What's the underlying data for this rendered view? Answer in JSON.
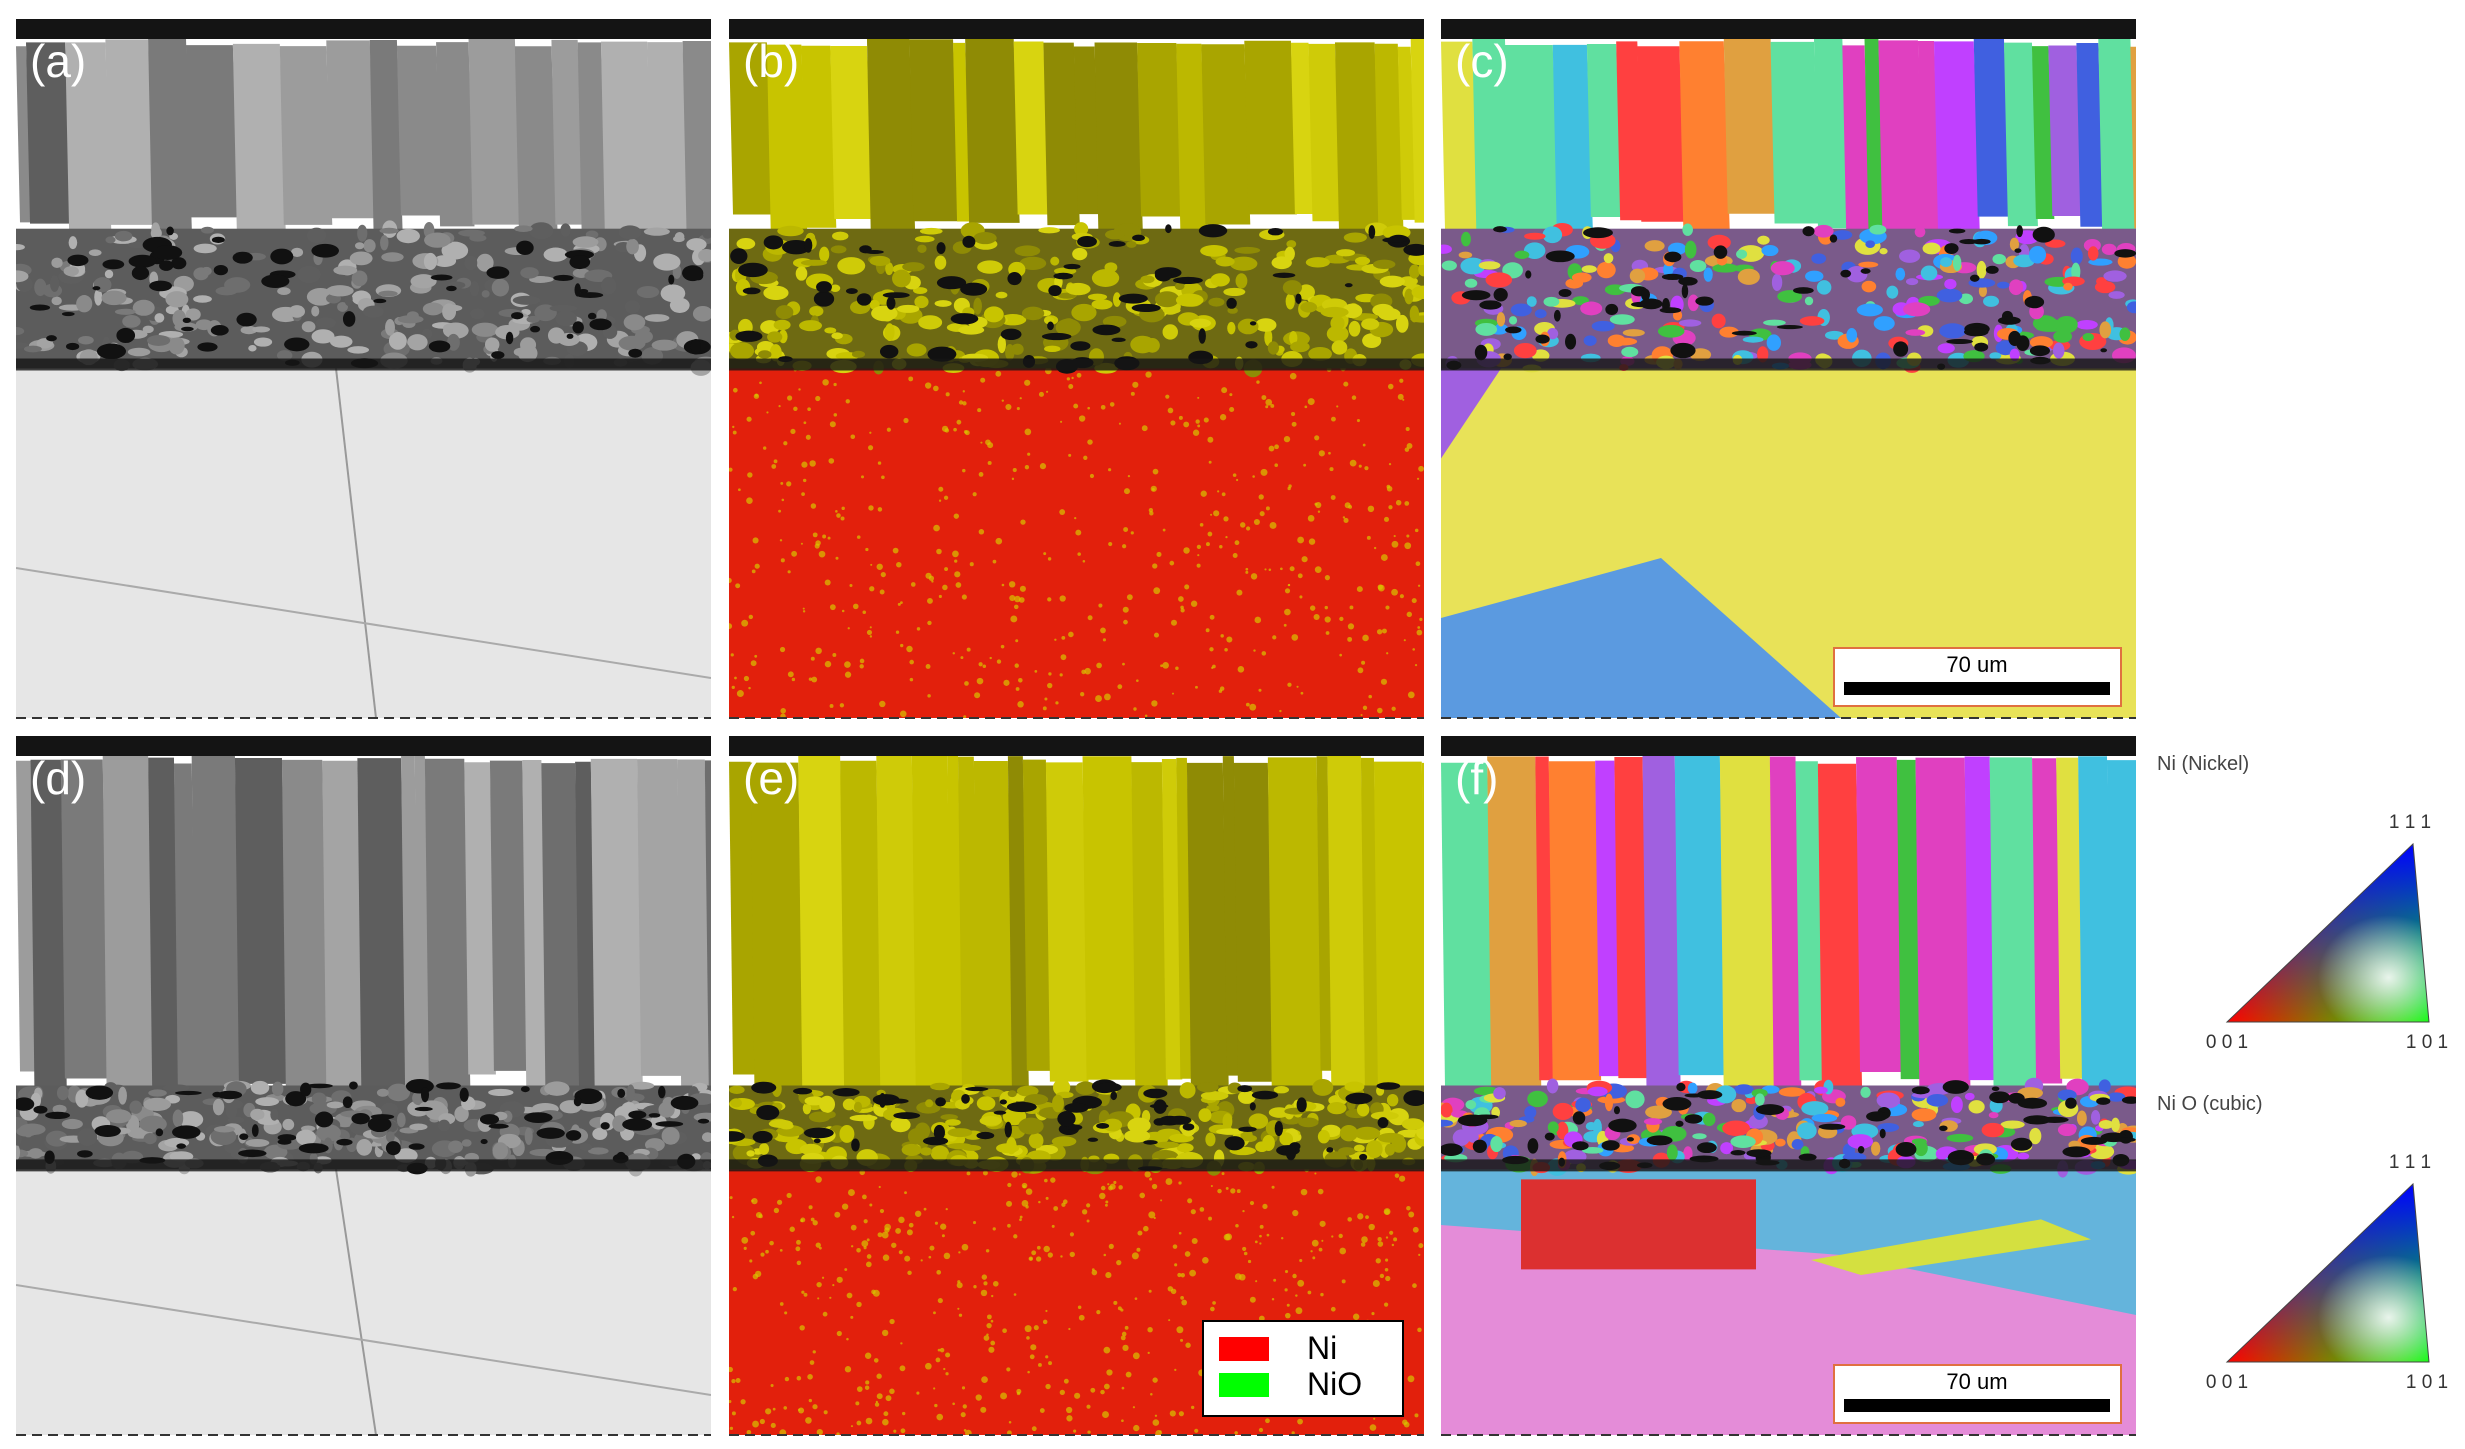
{
  "panels": [
    {
      "label": "(a)"
    },
    {
      "label": "(b)"
    },
    {
      "label": "(c)",
      "scale_bar": "70 um"
    },
    {
      "label": "(d)"
    },
    {
      "label": "(e)",
      "legend": [
        {
          "name": "Ni",
          "color": "#ff0000"
        },
        {
          "name": "NiO",
          "color": "#00ff00"
        }
      ]
    },
    {
      "label": "(f)",
      "scale_bar": "70 um"
    }
  ],
  "ipf_keys": [
    {
      "phase": "Ni (Nickel)",
      "corners": [
        "1 1 1",
        "0 0 1",
        "1 0 1"
      ]
    },
    {
      "phase": "Ni O (cubic)",
      "corners": [
        "1 1 1",
        "0 0 1",
        "1 0 1"
      ]
    }
  ]
}
